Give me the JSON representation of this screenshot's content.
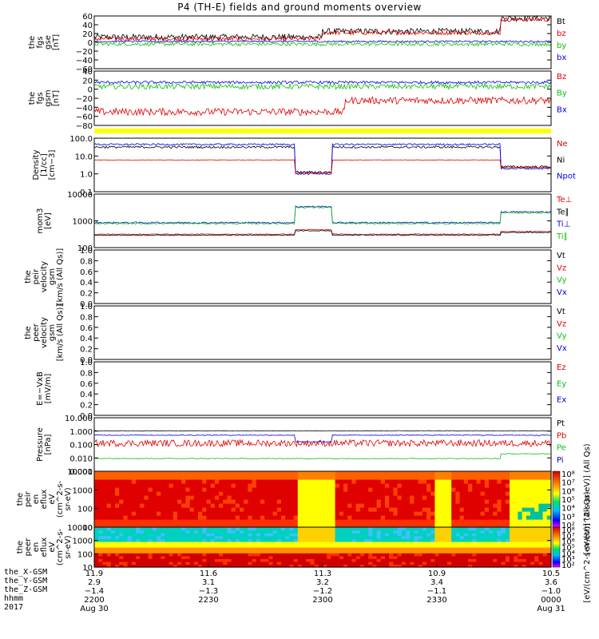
{
  "title": "P4 (TH-E) fields and ground moments overview",
  "colors": {
    "black": "#000000",
    "red": "#e00000",
    "green": "#10c010",
    "blue": "#0000e0",
    "yellow": "#ffff00"
  },
  "chart_data": [
    {
      "type": "line",
      "panel": "fgs_gse",
      "ylabel": [
        "the",
        "fgs",
        "gse",
        "[nT]"
      ],
      "ylim": [
        -60,
        60
      ],
      "yticks": [
        "60",
        "40",
        "20",
        "0",
        "−20",
        "−40",
        "−60"
      ],
      "series": [
        {
          "name": "Bt",
          "color": "#000000"
        },
        {
          "name": "bz",
          "color": "#e00000"
        },
        {
          "name": "by",
          "color": "#10c010"
        },
        {
          "name": "bx",
          "color": "#0000e0"
        }
      ]
    },
    {
      "type": "line",
      "panel": "fgs_gsm",
      "ylabel": [
        "the",
        "fgs",
        "gsm",
        "[nT]"
      ],
      "ylim": [
        -80,
        40
      ],
      "yticks": [
        "40",
        "20",
        "0",
        "−20",
        "−40",
        "−60",
        "−80"
      ],
      "series": [
        {
          "name": "Bz",
          "color": "#e00000"
        },
        {
          "name": "By",
          "color": "#10c010"
        },
        {
          "name": "Bx",
          "color": "#0000e0"
        }
      ]
    },
    {
      "type": "line",
      "panel": "density",
      "yscale": "log",
      "ylabel": [
        "Density",
        "[1/cc]",
        "[cm−3]"
      ],
      "ylim": [
        0.1,
        100
      ],
      "yticks": [
        "100.0",
        "10.0",
        "1.0",
        "0.1"
      ],
      "series": [
        {
          "name": "Ne",
          "color": "#e00000"
        },
        {
          "name": "Ni",
          "color": "#000000"
        },
        {
          "name": "Npot",
          "color": "#0000e0"
        }
      ]
    },
    {
      "type": "line",
      "panel": "temperature",
      "yscale": "log",
      "ylabel": [
        "mom3",
        "[eV]"
      ],
      "ylim": [
        10,
        10000
      ],
      "yticks": [
        "10000",
        "1000",
        "100"
      ],
      "series": [
        {
          "name": "Te⊥",
          "color": "#e00000"
        },
        {
          "name": "Te∥",
          "color": "#000000"
        },
        {
          "name": "Ti⊥",
          "color": "#0000e0"
        },
        {
          "name": "Ti∥",
          "color": "#10c010"
        }
      ]
    },
    {
      "type": "line",
      "panel": "peir_velocity",
      "ylabel": [
        "the",
        "peir",
        "velocity",
        "gsm",
        "[km/s (All Qs)]"
      ],
      "ylim": [
        0,
        1
      ],
      "yticks": [
        "1.0",
        "0.8",
        "0.6",
        "0.4",
        "0.2",
        "0.0"
      ],
      "series": [
        {
          "name": "Vt",
          "color": "#000000"
        },
        {
          "name": "Vz",
          "color": "#e00000"
        },
        {
          "name": "Vy",
          "color": "#10c010"
        },
        {
          "name": "Vx",
          "color": "#0000e0"
        }
      ]
    },
    {
      "type": "line",
      "panel": "peer_velocity",
      "ylabel": [
        "the",
        "peer",
        "velocity",
        "gsm",
        "[km/s (All Qs)]"
      ],
      "ylim": [
        0,
        1
      ],
      "yticks": [
        "1.0",
        "0.8",
        "0.6",
        "0.4",
        "0.2",
        "0.0"
      ],
      "series": [
        {
          "name": "Vt",
          "color": "#000000"
        },
        {
          "name": "Vz",
          "color": "#e00000"
        },
        {
          "name": "Vy",
          "color": "#10c010"
        },
        {
          "name": "Vx",
          "color": "#0000e0"
        }
      ]
    },
    {
      "type": "line",
      "panel": "efield",
      "ylabel": [
        "E=−VxB",
        "[mV/m]"
      ],
      "ylim": [
        0,
        1
      ],
      "yticks": [
        "1.0",
        "0.8",
        "0.6",
        "0.4",
        "0.2",
        "0.0"
      ],
      "series": [
        {
          "name": "Ez",
          "color": "#e00000"
        },
        {
          "name": "Ey",
          "color": "#10c010"
        },
        {
          "name": "Ex",
          "color": "#0000e0"
        }
      ]
    },
    {
      "type": "line",
      "panel": "pressure",
      "yscale": "log",
      "ylabel": [
        "Pressure",
        "[nPa]"
      ],
      "ylim": [
        0.001,
        10
      ],
      "yticks": [
        "10.000",
        "1.000",
        "0.100",
        "0.010",
        "0.001"
      ],
      "series": [
        {
          "name": "Pt",
          "color": "#000000"
        },
        {
          "name": "Pb",
          "color": "#e00000"
        },
        {
          "name": "Pe",
          "color": "#10c010"
        },
        {
          "name": "Pi",
          "color": "#0000e0"
        }
      ]
    },
    {
      "type": "heatmap",
      "panel": "peir_en_eflux",
      "yscale": "log",
      "ylabel": [
        "the",
        "peir",
        "en",
        "eflux",
        "eV",
        "(cm^2-s-",
        "sr-eV)"
      ],
      "ylim": [
        10,
        20000
      ],
      "yticks": [
        "10000",
        "1000",
        "100",
        "10"
      ],
      "colorbar": {
        "label": "[eV/(cm^2-s-sr-eV)] (All Qs)",
        "ticks": [
          "10⁸",
          "10⁷",
          "10⁶",
          "10⁵",
          "10⁴",
          "10³",
          "10²"
        ]
      }
    },
    {
      "type": "heatmap",
      "panel": "peer_en_eflux",
      "yscale": "log",
      "ylabel": [
        "the",
        "peer",
        "en",
        "eflux",
        "eV",
        "(cm^2-s-",
        "sr-eV)"
      ],
      "ylim": [
        10,
        20000
      ],
      "yticks": [
        "10000",
        "1000",
        "100",
        "10"
      ],
      "colorbar": {
        "label": "[eV/(cm^2-s-sr-eV)] (All Qs)",
        "ticks": [
          "10⁸",
          "10⁷",
          "10⁶",
          "10⁵",
          "10⁴",
          "10³",
          "10²"
        ]
      }
    }
  ],
  "x_axis": {
    "row_labels": [
      "the_X-GSM",
      "the_Y-GSM",
      "the_Z-GSM",
      "hhmm",
      "2017"
    ],
    "columns": [
      {
        "x": "11.9",
        "y": "2.9",
        "z": "−1.4",
        "hhmm": "2200",
        "date": "Aug 30"
      },
      {
        "x": "11.6",
        "y": "3.1",
        "z": "−1.3",
        "hhmm": "2230",
        "date": ""
      },
      {
        "x": "11.3",
        "y": "3.2",
        "z": "−1.2",
        "hhmm": "2300",
        "date": ""
      },
      {
        "x": "10.9",
        "y": "3.4",
        "z": "−1.1",
        "hhmm": "2330",
        "date": ""
      },
      {
        "x": "10.5",
        "y": "3.6",
        "z": "−1.0",
        "hhmm": "0000",
        "date": "Aug 31"
      }
    ]
  }
}
